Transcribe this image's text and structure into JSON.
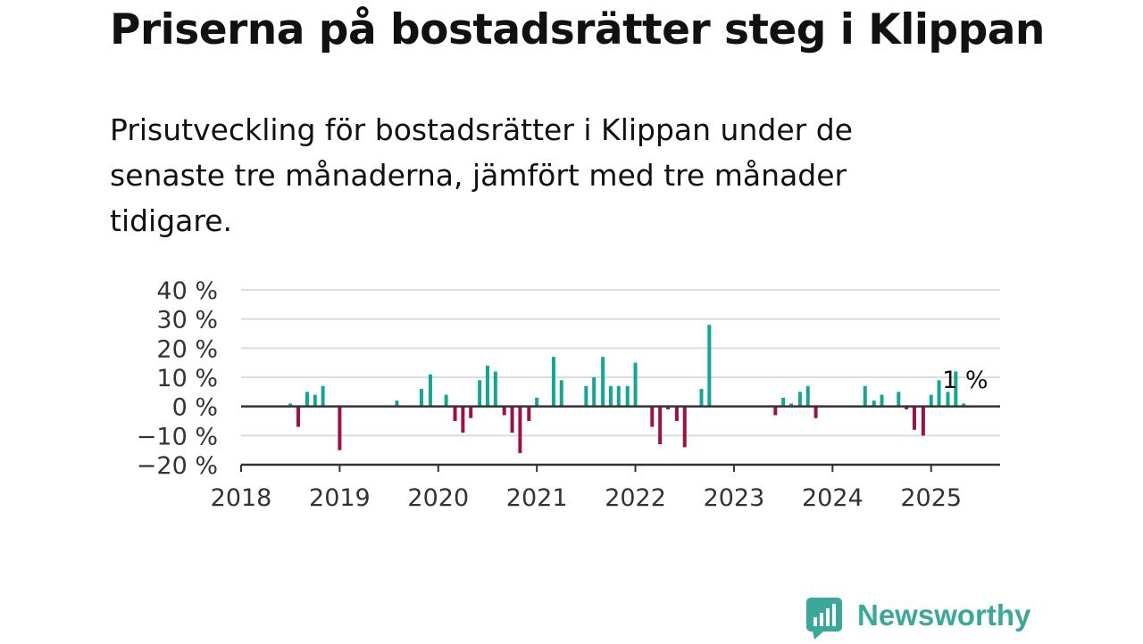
{
  "title": "Priserna på bostadsrätter steg i Klippan",
  "subtitle": "Prisutveckling för bostadsrätter i Klippan under de senaste tre månaderna, jämfört med tre månader tidigare.",
  "brand": {
    "name": "Newsworthy",
    "icon": "newsworthy-logo-icon"
  },
  "colors": {
    "positive": "#13a596",
    "negative": "#9e1048",
    "grid": "#dcdcdc",
    "axis": "#333333",
    "brand": "#3aa89a"
  },
  "chart_data": {
    "type": "bar",
    "ylim": [
      -20,
      40
    ],
    "yticks": [
      -20,
      -10,
      0,
      10,
      20,
      30,
      40
    ],
    "ytick_labels": [
      "−20 %",
      "−10 %",
      "0 %",
      "10 %",
      "20 %",
      "30 %",
      "40 %"
    ],
    "xlim": [
      2018,
      2025.7
    ],
    "xticks": [
      2018,
      2019,
      2020,
      2021,
      2022,
      2023,
      2024,
      2025
    ],
    "xtick_labels": [
      "2018",
      "2019",
      "2020",
      "2021",
      "2022",
      "2023",
      "2024",
      "2025"
    ],
    "grid": true,
    "last_value_label": "1 %",
    "series": [
      {
        "x": [
          2018.5,
          2018.58,
          2018.67,
          2018.75,
          2018.83,
          2019.0,
          2019.58,
          2019.83,
          2019.92,
          2020.08,
          2020.17,
          2020.25,
          2020.33,
          2020.42,
          2020.5,
          2020.58,
          2020.67,
          2020.75,
          2020.83,
          2020.92,
          2021.0,
          2021.17,
          2021.25,
          2021.5,
          2021.58,
          2021.67,
          2021.75,
          2021.83,
          2021.92,
          2022.0,
          2022.17,
          2022.25,
          2022.33,
          2022.42,
          2022.5,
          2022.67,
          2022.75,
          2023.42,
          2023.5,
          2023.58,
          2023.67,
          2023.75,
          2023.83,
          2024.33,
          2024.42,
          2024.5,
          2024.67,
          2024.75,
          2024.83,
          2024.92,
          2025.0,
          2025.08,
          2025.17,
          2025.25,
          2025.33
        ],
        "values": [
          1,
          -7,
          5,
          4,
          7,
          -15,
          2,
          6,
          11,
          4,
          -5,
          -9,
          -4,
          9,
          14,
          12,
          -3,
          -9,
          -16,
          -5,
          3,
          17,
          9,
          7,
          10,
          17,
          7,
          7,
          7,
          15,
          -7,
          -13,
          -1,
          -5,
          -14,
          6,
          28,
          -3,
          3,
          1,
          5,
          7,
          -4,
          7,
          2,
          4,
          5,
          -1,
          -8,
          -10,
          4,
          9,
          5,
          12,
          1
        ]
      }
    ]
  }
}
